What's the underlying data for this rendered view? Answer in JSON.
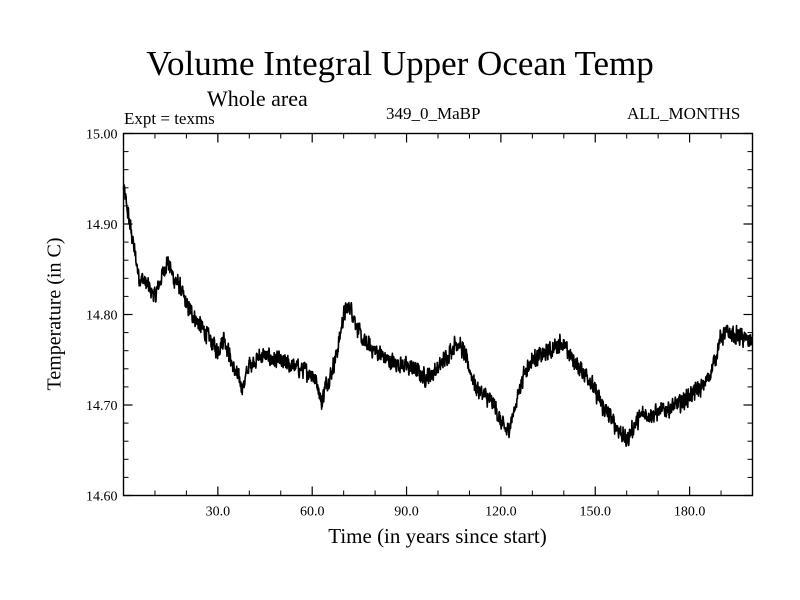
{
  "chart_data": {
    "type": "line",
    "title": "Volume Integral Upper Ocean Temp",
    "subtitle": "Whole area",
    "experiment_label": "Expt = texms",
    "run_label": "349_0_MaBP",
    "months_label": "ALL_MONTHS",
    "xlabel": "Time (in years since start)",
    "ylabel": "Temperature (in C)",
    "xlim": [
      0,
      200
    ],
    "ylim": [
      14.6,
      15.0
    ],
    "x_ticks": [
      30,
      60,
      90,
      120,
      150,
      180
    ],
    "x_tick_labels": [
      "30.0",
      "60.0",
      "90.0",
      "120.0",
      "150.0",
      "180.0"
    ],
    "y_ticks": [
      14.6,
      14.7,
      14.8,
      14.9,
      15.0
    ],
    "y_tick_labels": [
      "14.60",
      "14.70",
      "14.80",
      "14.90",
      "15.00"
    ],
    "grid": false,
    "series": [
      {
        "name": "Volume Integral Upper Ocean Temp",
        "color": "#000000",
        "samples_per_year": 12,
        "anchor_x": [
          0,
          1,
          2,
          3,
          4,
          5,
          6,
          8,
          10,
          12,
          14,
          16,
          18,
          20,
          22,
          24,
          26,
          28,
          30,
          32,
          35,
          38,
          40,
          44,
          48,
          52,
          56,
          60,
          62,
          63,
          64,
          66,
          68,
          70,
          72,
          74,
          76,
          80,
          84,
          88,
          92,
          96,
          100,
          104,
          106,
          108,
          110,
          112,
          115,
          118,
          120,
          122,
          124,
          126,
          128,
          130,
          133,
          136,
          139,
          142,
          145,
          148,
          150,
          152,
          155,
          158,
          160,
          162,
          165,
          168,
          172,
          176,
          180,
          184,
          186,
          188,
          190,
          192,
          196,
          200
        ],
        "anchor_y": [
          14.94,
          14.92,
          14.9,
          14.88,
          14.86,
          14.84,
          14.84,
          14.83,
          14.82,
          14.84,
          14.86,
          14.84,
          14.83,
          14.81,
          14.8,
          14.79,
          14.78,
          14.77,
          14.76,
          14.775,
          14.74,
          14.72,
          14.745,
          14.755,
          14.75,
          14.745,
          14.74,
          14.735,
          14.72,
          14.7,
          14.72,
          14.735,
          14.76,
          14.8,
          14.81,
          14.79,
          14.77,
          14.76,
          14.75,
          14.745,
          14.74,
          14.73,
          14.74,
          14.76,
          14.77,
          14.76,
          14.74,
          14.72,
          14.71,
          14.7,
          14.68,
          14.67,
          14.69,
          14.72,
          14.74,
          14.75,
          14.755,
          14.76,
          14.77,
          14.755,
          14.74,
          14.73,
          14.715,
          14.7,
          14.685,
          14.67,
          14.66,
          14.675,
          14.69,
          14.69,
          14.695,
          14.7,
          14.71,
          14.72,
          14.73,
          14.75,
          14.775,
          14.78,
          14.775,
          14.77
        ],
        "noise_amplitude": 0.012,
        "y_min_observed": 14.643,
        "y_max_observed": 14.962
      }
    ]
  }
}
